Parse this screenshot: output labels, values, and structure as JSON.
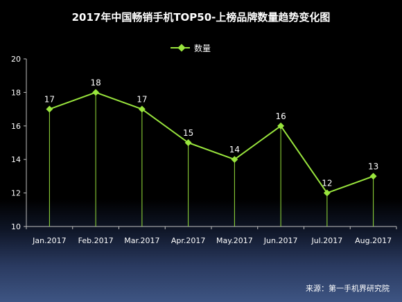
{
  "chart_data": {
    "type": "line",
    "title": "2017年中国畅销手机TOP50-上榜品牌数量趋势变化图",
    "legend": "数量",
    "legend_position": "top",
    "categories": [
      "Jan.2017",
      "Feb.2017",
      "Mar.2017",
      "Apr.2017",
      "May.2017",
      "Jun.2017",
      "Jul.2017",
      "Aug.2017"
    ],
    "series": [
      {
        "name": "数量",
        "values": [
          17,
          18,
          17,
          15,
          14,
          16,
          12,
          13
        ]
      }
    ],
    "ylim": [
      10,
      20
    ],
    "yticks": [
      10,
      12,
      14,
      16,
      18,
      20
    ],
    "grid": false,
    "drop_lines": true,
    "colors": {
      "line": "#99e53d",
      "text": "#ffffff",
      "axis": "#bfbfbf"
    }
  },
  "source": "来源：第一手机界研究院"
}
